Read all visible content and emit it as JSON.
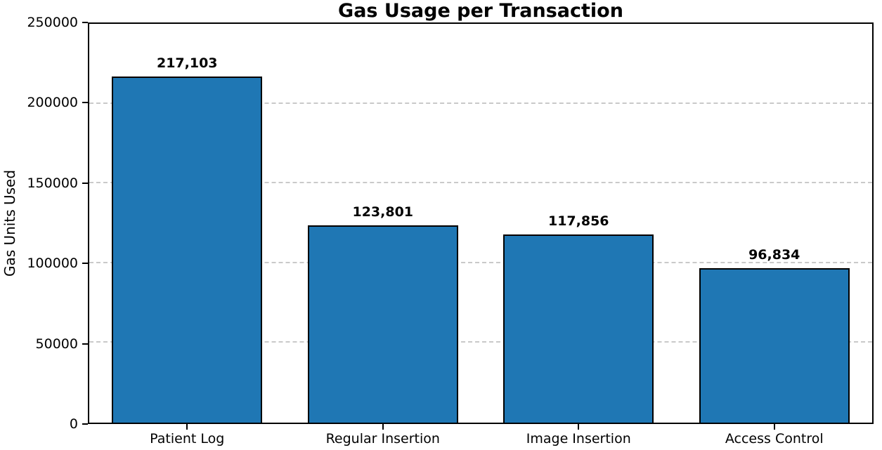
{
  "chart_data": {
    "type": "bar",
    "title": "Gas Usage per Transaction",
    "xlabel": "",
    "ylabel": "Gas Units Used",
    "categories": [
      "Patient Log",
      "Regular Insertion",
      "Image Insertion",
      "Access Control"
    ],
    "values": [
      217103,
      123801,
      117856,
      96834
    ],
    "value_labels": [
      "217,103",
      "123,801",
      "117,856",
      "96,834"
    ],
    "ylim": [
      0,
      250000
    ],
    "yticks": [
      0,
      50000,
      100000,
      150000,
      200000,
      250000
    ],
    "grid": "horizontal-dashed",
    "grid_color": "#c9c9c9",
    "bar_color": "#1f77b4",
    "bar_edge_color": "#000000",
    "background_color": "#ffffff",
    "legend": "none"
  }
}
